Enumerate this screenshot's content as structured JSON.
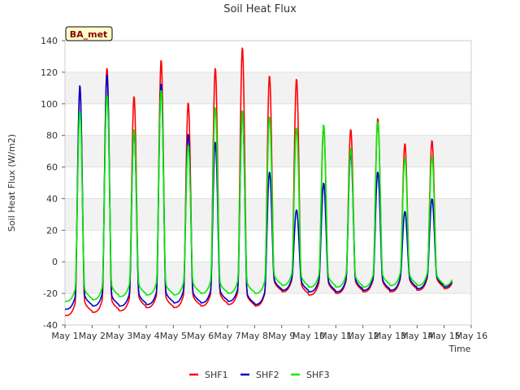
{
  "chart_data": {
    "type": "line",
    "title": "Soil Heat Flux",
    "xlabel": "Time",
    "ylabel": "Soil Heat Flux (W/m2)",
    "ylim": [
      -40,
      140
    ],
    "xlim": [
      1,
      16
    ],
    "yticks": [
      -40,
      -20,
      0,
      20,
      40,
      60,
      80,
      100,
      120,
      140
    ],
    "xticks": [
      {
        "v": 1,
        "label": "May 1"
      },
      {
        "v": 2,
        "label": "May 2"
      },
      {
        "v": 3,
        "label": "May 3"
      },
      {
        "v": 4,
        "label": "May 4"
      },
      {
        "v": 5,
        "label": "May 5"
      },
      {
        "v": 6,
        "label": "May 6"
      },
      {
        "v": 7,
        "label": "May 7"
      },
      {
        "v": 8,
        "label": "May 8"
      },
      {
        "v": 9,
        "label": "May 9"
      },
      {
        "v": 10,
        "label": "May 10"
      },
      {
        "v": 11,
        "label": "May 11"
      },
      {
        "v": 12,
        "label": "May 12"
      },
      {
        "v": 13,
        "label": "May 13"
      },
      {
        "v": 14,
        "label": "May 14"
      },
      {
        "v": 15,
        "label": "May 15"
      },
      {
        "v": 16,
        "label": "May 16"
      }
    ],
    "grid": true,
    "legend_position": "bottom",
    "tag": "BA_met",
    "x_start": 1,
    "x_end": 15.3,
    "peak_time": 0.55,
    "series": [
      {
        "name": "SHF1",
        "color": "#ff0000",
        "day_min": [
          -34,
          -32,
          -31,
          -29,
          -29,
          -28,
          -27,
          -28,
          -19,
          -21,
          -20,
          -19,
          -19,
          -18,
          -17,
          -18
        ],
        "day_max": [
          110,
          123,
          105,
          128,
          101,
          123,
          136,
          118,
          116,
          86,
          84,
          91,
          75,
          77
        ]
      },
      {
        "name": "SHF2",
        "color": "#0000cc",
        "day_min": [
          -30,
          -28,
          -28,
          -27,
          -26,
          -26,
          -25,
          -27,
          -18,
          -19,
          -19,
          -18,
          -18,
          -17,
          -16,
          -18
        ],
        "day_max": [
          112,
          119,
          83,
          113,
          81,
          76,
          96,
          57,
          33,
          50,
          69,
          57,
          32,
          40
        ]
      },
      {
        "name": "SHF3",
        "color": "#00ee00",
        "day_min": [
          -25,
          -24,
          -22,
          -21,
          -21,
          -20,
          -20,
          -20,
          -15,
          -16,
          -16,
          -16,
          -15,
          -15,
          -15,
          -16
        ],
        "day_max": [
          96,
          106,
          84,
          109,
          74,
          98,
          96,
          92,
          85,
          87,
          72,
          89,
          66,
          67
        ]
      }
    ]
  }
}
